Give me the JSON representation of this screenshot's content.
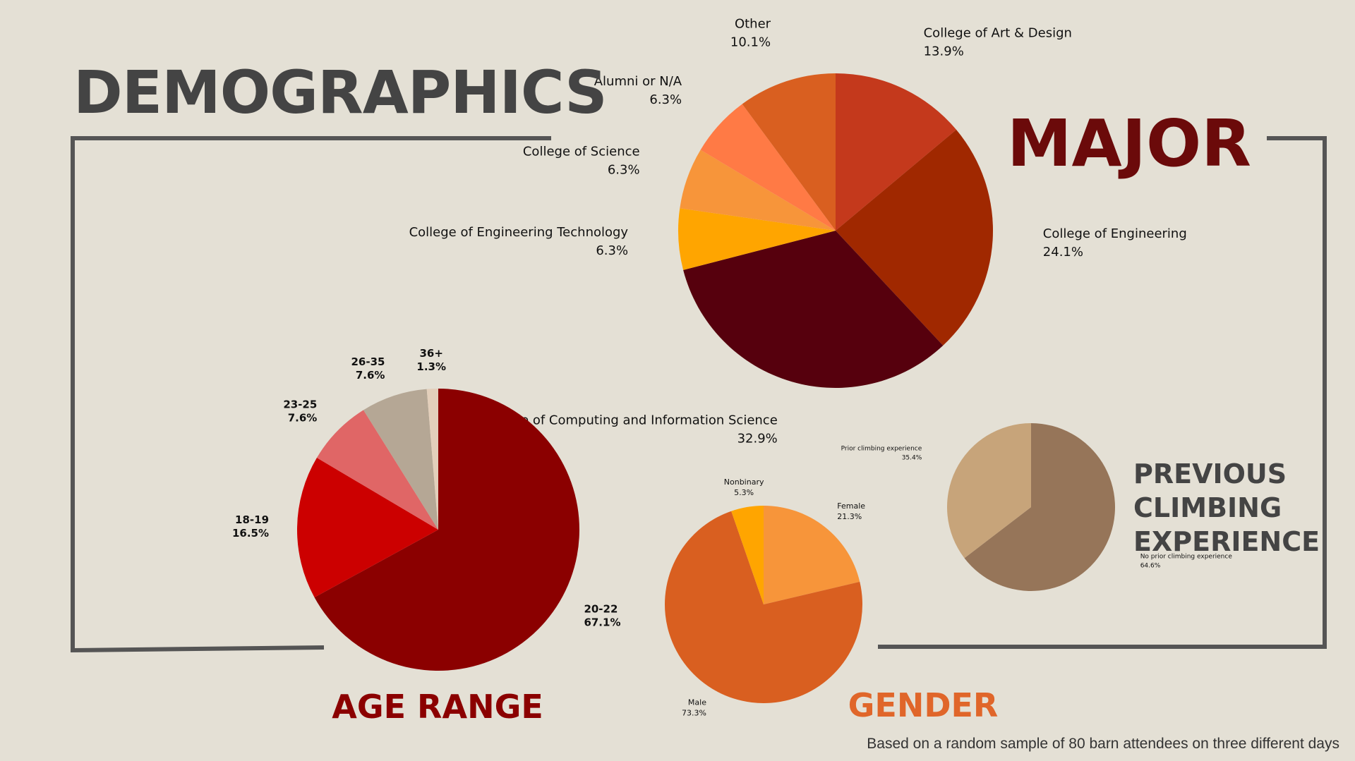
{
  "title": "DEMOGRAPHICS",
  "footnote": "Based on a random sample of 80 barn attendees on three different days",
  "chart_data": [
    {
      "type": "pie",
      "title": "MAJOR",
      "categories": [
        "College of Art & Design",
        "College of Engineering",
        "College of Computing and Information Science",
        "College of Engineering Technology",
        "College of Science",
        "Alumni or N/A",
        "Other"
      ],
      "values": [
        13.9,
        24.1,
        32.9,
        6.3,
        6.3,
        6.3,
        10.1
      ],
      "value_labels": [
        "13.9%",
        "24.1%",
        "32.9%",
        "6.3%",
        "6.3%",
        "6.3%",
        "10.1%"
      ],
      "colors": [
        "#c4391c",
        "#a02800",
        "#56000d",
        "#ffa500",
        "#f7953a",
        "#ff7a45",
        "#d95f20"
      ]
    },
    {
      "type": "pie",
      "title": "AGE RANGE",
      "categories": [
        "20-22",
        "18-19",
        "23-25",
        "26-35",
        "36+"
      ],
      "values": [
        67.1,
        16.5,
        7.6,
        7.6,
        1.3
      ],
      "value_labels": [
        "67.1%",
        "16.5%",
        "7.6%",
        "7.6%",
        "1.3%"
      ],
      "colors": [
        "#8b0000",
        "#cc0000",
        "#e06666",
        "#b5a795",
        "#e3cfbb"
      ]
    },
    {
      "type": "pie",
      "title": "GENDER",
      "categories": [
        "Female",
        "Male",
        "Nonbinary"
      ],
      "values": [
        21.3,
        73.3,
        5.3
      ],
      "value_labels": [
        "21.3%",
        "73.3%",
        "5.3%"
      ],
      "colors": [
        "#f7953a",
        "#d95f20",
        "#ffa500"
      ]
    },
    {
      "type": "pie",
      "title": "PREVIOUS CLIMBING EXPERIENCE",
      "categories": [
        "No prior climbing experience",
        "Prior climbing experience"
      ],
      "values": [
        64.6,
        35.4
      ],
      "value_labels": [
        "64.6%",
        "35.4%"
      ],
      "colors": [
        "#967559",
        "#c7a47a"
      ]
    }
  ]
}
